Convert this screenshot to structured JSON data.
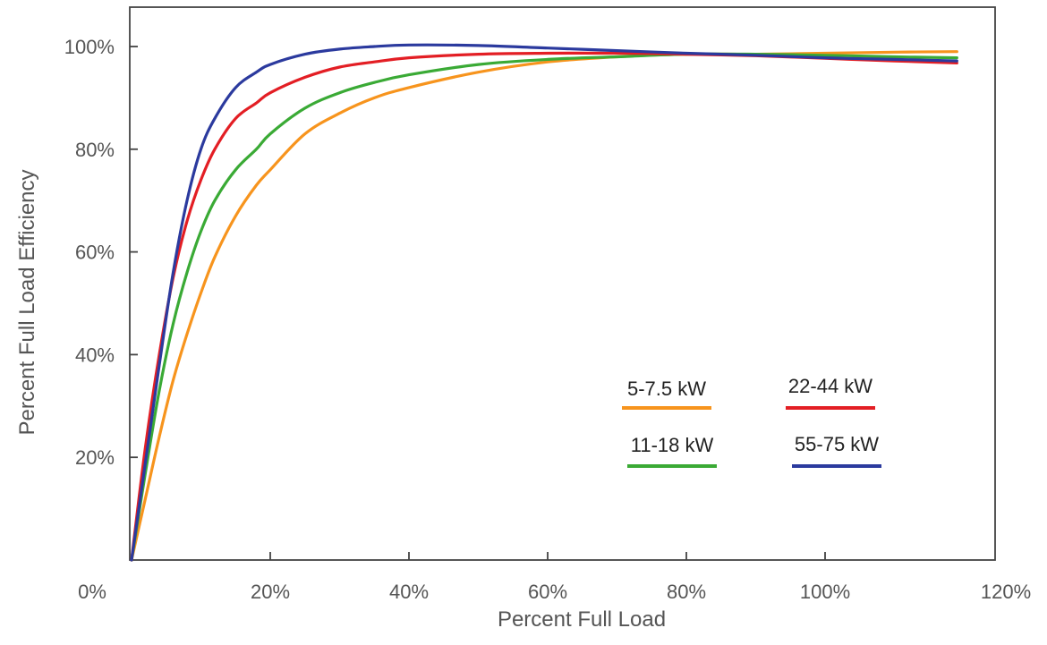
{
  "chart_data": {
    "type": "line",
    "xlabel": "Percent Full Load",
    "ylabel": "Percent Full Load Efficiency",
    "xlim": [
      0,
      120
    ],
    "ylim": [
      0,
      100
    ],
    "x_ticks": [
      {
        "value": 0,
        "label": "0%"
      },
      {
        "value": 20,
        "label": "20%"
      },
      {
        "value": 40,
        "label": "40%"
      },
      {
        "value": 60,
        "label": "60%"
      },
      {
        "value": 80,
        "label": "80%"
      },
      {
        "value": 100,
        "label": "100%"
      },
      {
        "value": 120,
        "label": "120%"
      }
    ],
    "y_ticks": [
      {
        "value": 20,
        "label": "20%"
      },
      {
        "value": 40,
        "label": "40%"
      },
      {
        "value": 60,
        "label": "60%"
      },
      {
        "value": 80,
        "label": "80%"
      },
      {
        "value": 100,
        "label": "100%"
      }
    ],
    "grid": false,
    "legend_position": "lower-right",
    "series": [
      {
        "name": "5-7.5 kW",
        "color": "#f7941d",
        "x": [
          0,
          2,
          4,
          6,
          8,
          10,
          12,
          15,
          18,
          20,
          25,
          30,
          35,
          40,
          50,
          60,
          70,
          80,
          90,
          100,
          110,
          119
        ],
        "y": [
          0,
          12,
          24,
          35,
          44,
          52,
          59,
          67,
          73,
          76,
          83,
          87,
          90,
          92,
          95,
          97,
          98,
          98.5,
          98.5,
          98.7,
          98.9,
          99
        ]
      },
      {
        "name": "11-18 kW",
        "color": "#3aaa35",
        "x": [
          0,
          2,
          4,
          6,
          8,
          10,
          12,
          15,
          18,
          20,
          25,
          30,
          35,
          40,
          50,
          60,
          70,
          80,
          90,
          100,
          110,
          119
        ],
        "y": [
          0,
          17,
          33,
          46,
          56,
          64,
          70,
          76,
          80,
          83,
          88,
          91,
          93,
          94.5,
          96.5,
          97.5,
          98,
          98.5,
          98.5,
          98.3,
          98,
          97.8
        ]
      },
      {
        "name": "22-44 kW",
        "color": "#e31e24",
        "x": [
          0,
          2,
          4,
          6,
          8,
          10,
          12,
          15,
          18,
          20,
          25,
          30,
          35,
          40,
          50,
          60,
          70,
          80,
          90,
          100,
          110,
          119
        ],
        "y": [
          0,
          22,
          40,
          55,
          66,
          74,
          80,
          86,
          89,
          91,
          94,
          96,
          97,
          97.8,
          98.5,
          98.7,
          98.7,
          98.5,
          98.2,
          97.7,
          97.2,
          96.8
        ]
      },
      {
        "name": "55-75 kW",
        "color": "#2b3a9e",
        "x": [
          0,
          2,
          4,
          6,
          8,
          10,
          12,
          15,
          18,
          20,
          25,
          30,
          35,
          40,
          50,
          60,
          70,
          80,
          90,
          100,
          110,
          119
        ],
        "y": [
          0,
          19,
          38,
          56,
          70,
          80,
          86,
          92,
          95,
          96.5,
          98.5,
          99.5,
          100,
          100.3,
          100.2,
          99.7,
          99.2,
          98.7,
          98.3,
          97.8,
          97.5,
          97.2
        ]
      }
    ]
  }
}
